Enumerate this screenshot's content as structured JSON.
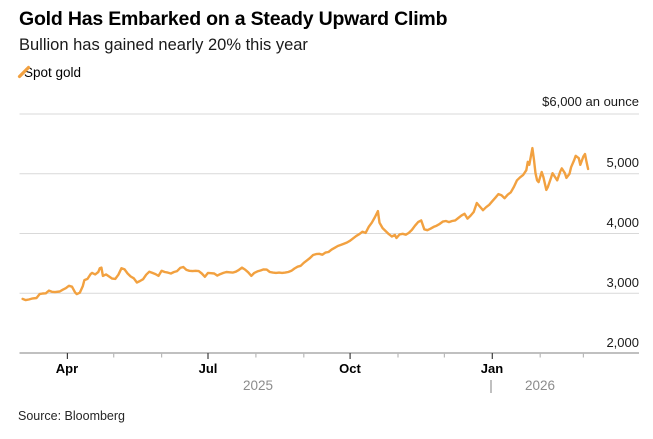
{
  "chart_data": {
    "type": "line",
    "title": "Gold Has Embarked on a Steady Upward Climb",
    "subtitle": "Bullion has gained nearly 20% this year",
    "source": "Source: Bloomberg",
    "legend_position": "top-left",
    "grid": "horizontal",
    "y_axis": {
      "side": "right",
      "range": [
        2000,
        6000
      ],
      "ticks": [
        {
          "value": 6000,
          "label": "$6,000 an ounce"
        },
        {
          "value": 5000,
          "label": "5,000"
        },
        {
          "value": 4000,
          "label": "4,000"
        },
        {
          "value": 3000,
          "label": "3,000"
        },
        {
          "value": 2000,
          "label": "2,000"
        }
      ]
    },
    "x_axis": {
      "start_date": "2025-03-01",
      "end_date": "2026-04-01",
      "ticks": [
        {
          "label": "Apr",
          "day": 31,
          "major": true
        },
        {
          "label": "",
          "day": 61,
          "major": false
        },
        {
          "label": "",
          "day": 92,
          "major": false
        },
        {
          "label": "Jul",
          "day": 122,
          "major": true
        },
        {
          "label": "",
          "day": 153,
          "major": false
        },
        {
          "label": "",
          "day": 184,
          "major": false
        },
        {
          "label": "Oct",
          "day": 214,
          "major": true
        },
        {
          "label": "",
          "day": 245,
          "major": false
        },
        {
          "label": "",
          "day": 275,
          "major": false
        },
        {
          "label": "Jan",
          "day": 306,
          "major": true
        },
        {
          "label": "",
          "day": 337,
          "major": false
        },
        {
          "label": "",
          "day": 365,
          "major": false
        }
      ],
      "year_divider": "|",
      "years": [
        {
          "label": "2025"
        },
        {
          "label": "2026"
        }
      ]
    },
    "series": [
      {
        "name": "Spot gold",
        "color": "#F2A140",
        "unit": "USD per ounce",
        "points_day_value": [
          [
            2,
            2905
          ],
          [
            4,
            2885
          ],
          [
            6,
            2895
          ],
          [
            8,
            2910
          ],
          [
            11,
            2920
          ],
          [
            13,
            2985
          ],
          [
            15,
            2995
          ],
          [
            17,
            3000
          ],
          [
            19,
            3045
          ],
          [
            21,
            3025
          ],
          [
            23,
            3020
          ],
          [
            26,
            3030
          ],
          [
            28,
            3060
          ],
          [
            30,
            3085
          ],
          [
            32,
            3125
          ],
          [
            34,
            3110
          ],
          [
            36,
            3015
          ],
          [
            37,
            2985
          ],
          [
            39,
            3010
          ],
          [
            41,
            3120
          ],
          [
            42,
            3220
          ],
          [
            44,
            3240
          ],
          [
            46,
            3320
          ],
          [
            47,
            3340
          ],
          [
            49,
            3315
          ],
          [
            51,
            3355
          ],
          [
            52,
            3420
          ],
          [
            53,
            3430
          ],
          [
            54,
            3290
          ],
          [
            56,
            3315
          ],
          [
            58,
            3280
          ],
          [
            60,
            3245
          ],
          [
            62,
            3240
          ],
          [
            64,
            3310
          ],
          [
            66,
            3420
          ],
          [
            68,
            3400
          ],
          [
            70,
            3330
          ],
          [
            72,
            3280
          ],
          [
            74,
            3250
          ],
          [
            76,
            3180
          ],
          [
            78,
            3205
          ],
          [
            80,
            3235
          ],
          [
            82,
            3310
          ],
          [
            84,
            3360
          ],
          [
            86,
            3340
          ],
          [
            88,
            3320
          ],
          [
            90,
            3290
          ],
          [
            92,
            3375
          ],
          [
            94,
            3355
          ],
          [
            96,
            3345
          ],
          [
            98,
            3330
          ],
          [
            100,
            3355
          ],
          [
            102,
            3370
          ],
          [
            104,
            3425
          ],
          [
            106,
            3440
          ],
          [
            108,
            3390
          ],
          [
            110,
            3375
          ],
          [
            112,
            3370
          ],
          [
            114,
            3375
          ],
          [
            116,
            3370
          ],
          [
            118,
            3330
          ],
          [
            120,
            3275
          ],
          [
            122,
            3340
          ],
          [
            124,
            3335
          ],
          [
            126,
            3330
          ],
          [
            128,
            3295
          ],
          [
            130,
            3320
          ],
          [
            132,
            3340
          ],
          [
            134,
            3355
          ],
          [
            136,
            3350
          ],
          [
            138,
            3345
          ],
          [
            140,
            3360
          ],
          [
            142,
            3390
          ],
          [
            144,
            3430
          ],
          [
            146,
            3395
          ],
          [
            148,
            3350
          ],
          [
            150,
            3290
          ],
          [
            152,
            3340
          ],
          [
            154,
            3365
          ],
          [
            156,
            3380
          ],
          [
            158,
            3400
          ],
          [
            160,
            3395
          ],
          [
            162,
            3355
          ],
          [
            164,
            3345
          ],
          [
            166,
            3340
          ],
          [
            168,
            3345
          ],
          [
            170,
            3340
          ],
          [
            172,
            3345
          ],
          [
            174,
            3355
          ],
          [
            176,
            3375
          ],
          [
            178,
            3415
          ],
          [
            180,
            3445
          ],
          [
            182,
            3460
          ],
          [
            184,
            3510
          ],
          [
            186,
            3550
          ],
          [
            188,
            3590
          ],
          [
            190,
            3640
          ],
          [
            192,
            3655
          ],
          [
            194,
            3660
          ],
          [
            196,
            3645
          ],
          [
            198,
            3680
          ],
          [
            200,
            3690
          ],
          [
            202,
            3730
          ],
          [
            204,
            3760
          ],
          [
            206,
            3790
          ],
          [
            208,
            3810
          ],
          [
            210,
            3830
          ],
          [
            212,
            3850
          ],
          [
            214,
            3880
          ],
          [
            216,
            3920
          ],
          [
            218,
            3960
          ],
          [
            220,
            3990
          ],
          [
            222,
            4030
          ],
          [
            224,
            4010
          ],
          [
            226,
            4110
          ],
          [
            228,
            4180
          ],
          [
            230,
            4270
          ],
          [
            232,
            4375
          ],
          [
            233,
            4180
          ],
          [
            235,
            4090
          ],
          [
            237,
            4040
          ],
          [
            239,
            3990
          ],
          [
            241,
            3950
          ],
          [
            243,
            3975
          ],
          [
            244,
            3925
          ],
          [
            246,
            3985
          ],
          [
            248,
            3995
          ],
          [
            250,
            3980
          ],
          [
            252,
            4010
          ],
          [
            254,
            4060
          ],
          [
            256,
            4130
          ],
          [
            258,
            4190
          ],
          [
            260,
            4220
          ],
          [
            262,
            4070
          ],
          [
            264,
            4055
          ],
          [
            266,
            4080
          ],
          [
            268,
            4110
          ],
          [
            270,
            4130
          ],
          [
            272,
            4160
          ],
          [
            274,
            4200
          ],
          [
            276,
            4210
          ],
          [
            278,
            4190
          ],
          [
            280,
            4210
          ],
          [
            282,
            4220
          ],
          [
            284,
            4260
          ],
          [
            286,
            4300
          ],
          [
            288,
            4330
          ],
          [
            290,
            4250
          ],
          [
            292,
            4300
          ],
          [
            294,
            4360
          ],
          [
            296,
            4510
          ],
          [
            298,
            4450
          ],
          [
            300,
            4390
          ],
          [
            302,
            4440
          ],
          [
            304,
            4480
          ],
          [
            306,
            4540
          ],
          [
            308,
            4600
          ],
          [
            310,
            4660
          ],
          [
            312,
            4640
          ],
          [
            314,
            4590
          ],
          [
            316,
            4650
          ],
          [
            318,
            4690
          ],
          [
            320,
            4780
          ],
          [
            322,
            4890
          ],
          [
            324,
            4940
          ],
          [
            326,
            4980
          ],
          [
            328,
            5060
          ],
          [
            329,
            5200
          ],
          [
            330,
            5150
          ],
          [
            332,
            5430
          ],
          [
            333,
            5230
          ],
          [
            334,
            5010
          ],
          [
            335,
            4890
          ],
          [
            336,
            4860
          ],
          [
            338,
            5030
          ],
          [
            339,
            4950
          ],
          [
            341,
            4730
          ],
          [
            342,
            4780
          ],
          [
            344,
            4930
          ],
          [
            345,
            5010
          ],
          [
            347,
            4930
          ],
          [
            348,
            4890
          ],
          [
            350,
            5040
          ],
          [
            351,
            5090
          ],
          [
            353,
            5010
          ],
          [
            354,
            4930
          ],
          [
            356,
            5000
          ],
          [
            357,
            5110
          ],
          [
            359,
            5230
          ],
          [
            360,
            5300
          ],
          [
            362,
            5260
          ],
          [
            363,
            5150
          ],
          [
            365,
            5290
          ],
          [
            366,
            5330
          ],
          [
            367,
            5200
          ],
          [
            368,
            5080
          ]
        ]
      }
    ]
  }
}
